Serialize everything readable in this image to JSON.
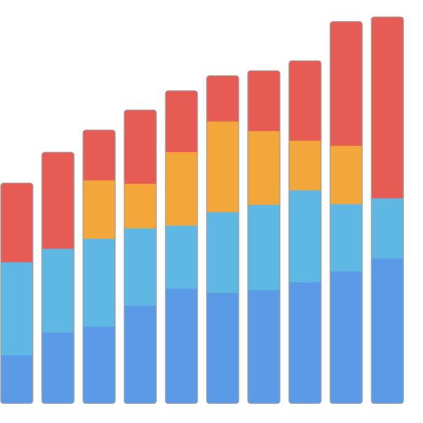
{
  "chart_data": {
    "type": "bar",
    "stacked": true,
    "title": "",
    "xlabel": "",
    "ylabel": "",
    "categories": [
      "",
      "",
      "",
      "",
      "",
      "",
      "",
      "",
      "",
      ""
    ],
    "ylim": [
      0,
      100
    ],
    "grid": false,
    "legend": "none",
    "series": [
      {
        "color": "#5b9ae6",
        "values": [
          12.6,
          18.5,
          20.1,
          25.5,
          29.9,
          28.8,
          29.5,
          31.6,
          34.4,
          37.8
        ]
      },
      {
        "color": "#5fb8e3",
        "values": [
          24.2,
          21.8,
          22.8,
          20.1,
          16.4,
          21.0,
          22.2,
          23.9,
          17.5,
          15.6
        ]
      },
      {
        "color": "#f3a73b",
        "values": [
          0,
          0,
          15.2,
          11.6,
          19.1,
          23.6,
          19.2,
          12.9,
          15.2,
          0
        ]
      },
      {
        "color": "#e65b53",
        "values": [
          20.5,
          25.0,
          13.0,
          19.1,
          15.9,
          11.8,
          15.6,
          20.7,
          32.2,
          47.1
        ]
      }
    ]
  }
}
